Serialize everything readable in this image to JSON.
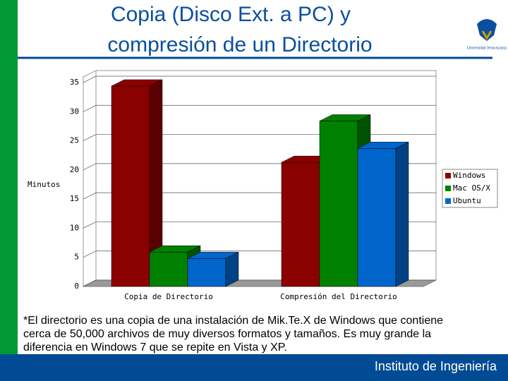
{
  "title_lines": [
    "Copia (Disco Ext. a PC) y",
    "compresión de un Directorio"
  ],
  "logo_text": "Universidad Veracruzana",
  "chart_data": {
    "type": "bar3d",
    "ylabel": "Minutos",
    "categories": [
      "Copia de Directorio",
      "Compresión del Directorio"
    ],
    "series": [
      {
        "name": "Windows",
        "color": "#8b0000",
        "values": [
          34.4,
          21.3
        ]
      },
      {
        "name": "Mac OS/X",
        "color": "#008000",
        "values": [
          5.9,
          28.4
        ]
      },
      {
        "name": "Ubuntu",
        "color": "#0066cc",
        "values": [
          4.8,
          23.7
        ]
      }
    ],
    "ylim": [
      0,
      35
    ],
    "yticks": [
      0,
      5,
      10,
      15,
      20,
      25,
      30,
      35
    ],
    "grid": true,
    "legend": "right"
  },
  "footnote": [
    "*El directorio es una copia de una instalación de Mik.Te.X de Windows que contiene",
    "cerca de 50,000 archivos de muy diversos formatos y tamaños. Es muy grande la",
    "diferencia en Windows 7 que se repite en Vista y XP."
  ],
  "footer": "Instituto de Ingeniería"
}
